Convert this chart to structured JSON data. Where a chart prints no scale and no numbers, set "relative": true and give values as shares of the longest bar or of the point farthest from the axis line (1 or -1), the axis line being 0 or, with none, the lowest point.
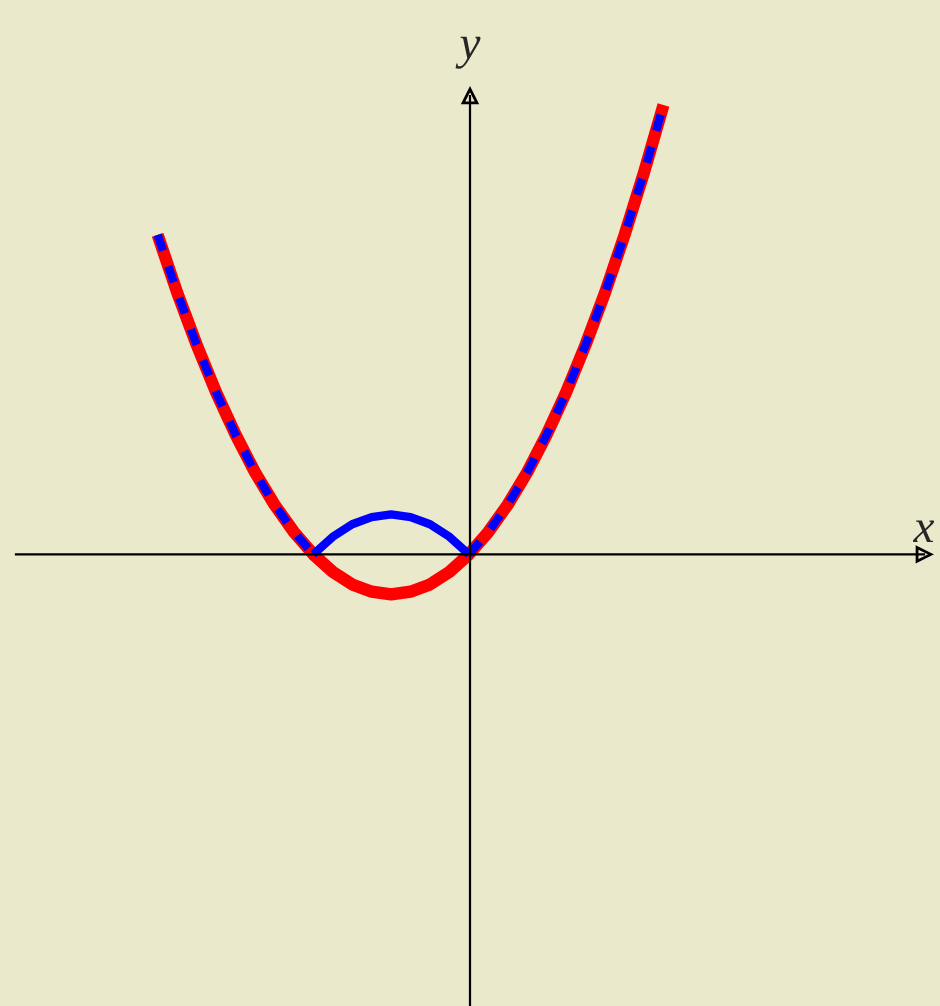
{
  "chart_data": {
    "type": "line",
    "relative": true,
    "annotations": [
      "x"
    ],
    "ylabel": "y",
    "grid": false,
    "legend": false,
    "categories": [
      null,
      null,
      null,
      null,
      null,
      null,
      null,
      null,
      null,
      null,
      null,
      null,
      null,
      null,
      null,
      null,
      null,
      null,
      null,
      null,
      null,
      null,
      null,
      null,
      null,
      null,
      null
    ],
    "series": [
      {
        "color": "#ff0000",
        "line_style": "solid",
        "values": [
          0.711,
          0.583,
          0.467,
          0.361,
          0.267,
          0.183,
          0.111,
          0.05,
          0,
          -0.039,
          -0.067,
          -0.083,
          -0.089,
          -0.083,
          -0.067,
          -0.039,
          0,
          0.05,
          0.111,
          0.183,
          0.267,
          0.361,
          0.467,
          0.583,
          0.711,
          0.85,
          1
        ]
      },
      {
        "color": "#0000ff",
        "line_style": "dashed",
        "values": [
          0.711,
          0.583,
          0.467,
          0.361,
          0.267,
          0.183,
          0.111,
          0.05,
          0,
          null,
          null,
          null,
          null,
          null,
          null,
          null,
          0,
          0.05,
          0.111,
          0.183,
          0.267,
          0.361,
          0.467,
          0.583,
          0.711,
          0.85,
          1
        ]
      },
      {
        "color": "#0000ff",
        "line_style": "solid",
        "values": [
          null,
          null,
          null,
          null,
          null,
          null,
          null,
          null,
          0,
          0.039,
          0.067,
          0.083,
          0.089,
          0.083,
          0.067,
          0.039,
          0,
          null,
          null,
          null,
          null,
          null,
          null,
          null,
          null,
          null,
          null
        ]
      }
    ]
  }
}
